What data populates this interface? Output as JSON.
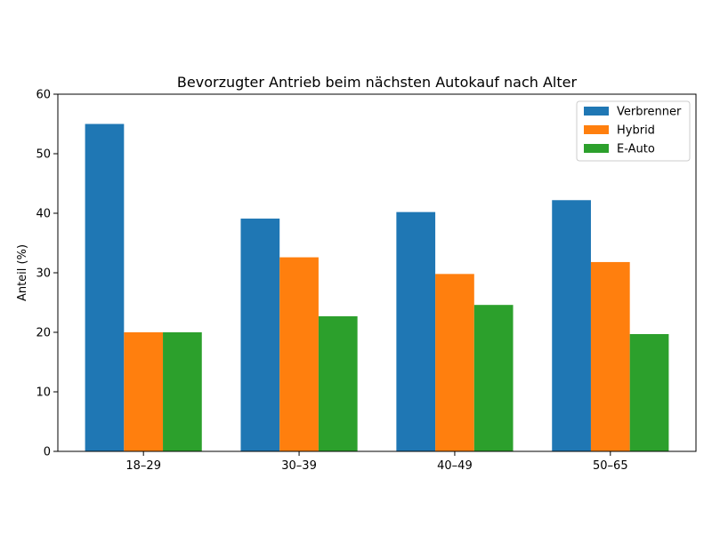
{
  "chart_data": {
    "type": "bar",
    "title": "Bevorzugter Antrieb beim nächsten Autokauf nach Alter",
    "xlabel": "",
    "ylabel": "Anteil (%)",
    "categories": [
      "18–29",
      "30–39",
      "40–49",
      "50–65"
    ],
    "series": [
      {
        "name": "Verbrenner",
        "color": "#1f77b4",
        "values": [
          55.0,
          39.1,
          40.2,
          42.2
        ]
      },
      {
        "name": "Hybrid",
        "color": "#ff7f0e",
        "values": [
          20.0,
          32.6,
          29.8,
          31.8
        ]
      },
      {
        "name": "E-Auto",
        "color": "#2ca02c",
        "values": [
          20.0,
          22.7,
          24.6,
          19.7
        ]
      }
    ],
    "ylim": [
      0,
      60
    ],
    "yticks": [
      0,
      10,
      20,
      30,
      40,
      50,
      60
    ],
    "grid": false,
    "legend_position": "top-right"
  }
}
